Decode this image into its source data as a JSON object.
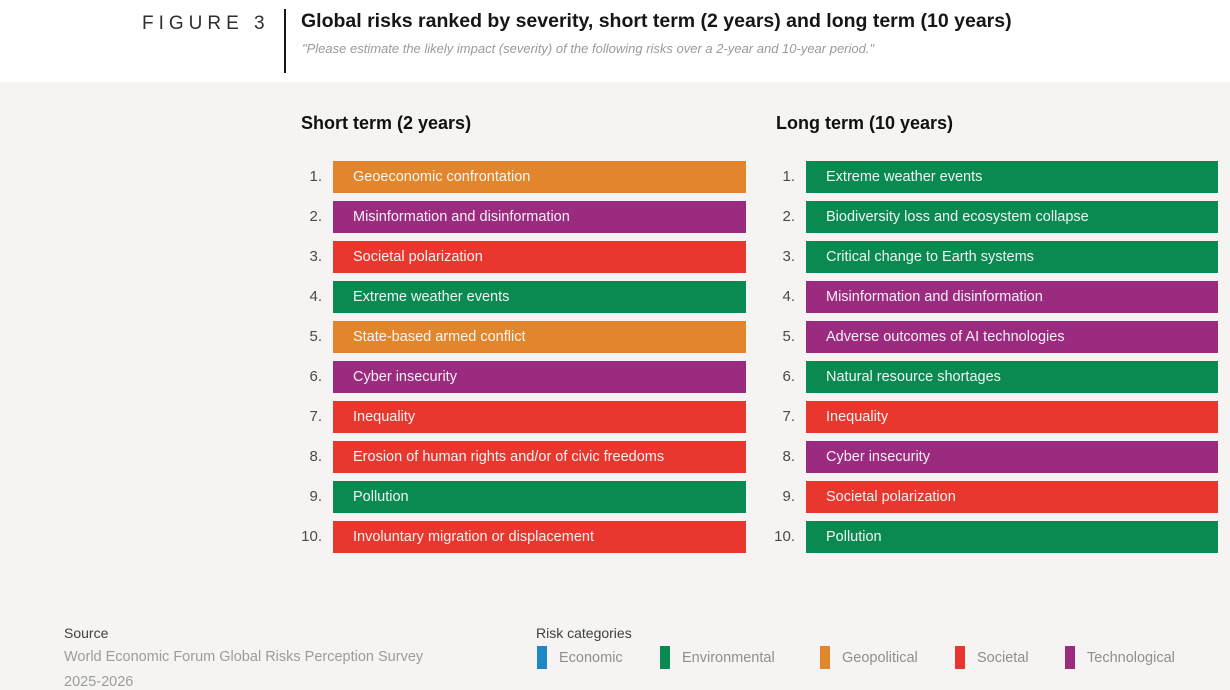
{
  "figure": {
    "label": "FIGURE 3",
    "title": "Global risks ranked by severity, short term (2 years) and long term (10 years)",
    "subtitle": "\"Please estimate the likely impact (severity) of the following risks over a 2-year and 10-year period.\""
  },
  "chart_data": {
    "type": "table",
    "description": "Two ranked lists of global risks by severity, color-coded by risk category",
    "columns": [
      {
        "title": "Short term (2 years)",
        "items": [
          {
            "rank": "1.",
            "label": "Geoeconomic confrontation",
            "category": "geopolitical"
          },
          {
            "rank": "2.",
            "label": "Misinformation and disinformation",
            "category": "technological"
          },
          {
            "rank": "3.",
            "label": "Societal polarization",
            "category": "societal"
          },
          {
            "rank": "4.",
            "label": "Extreme weather events",
            "category": "environmental"
          },
          {
            "rank": "5.",
            "label": "State-based armed conflict",
            "category": "geopolitical"
          },
          {
            "rank": "6.",
            "label": "Cyber insecurity",
            "category": "technological"
          },
          {
            "rank": "7.",
            "label": "Inequality",
            "category": "societal"
          },
          {
            "rank": "8.",
            "label": "Erosion of human rights and/or of civic freedoms",
            "category": "societal"
          },
          {
            "rank": "9.",
            "label": "Pollution",
            "category": "environmental"
          },
          {
            "rank": "10.",
            "label": "Involuntary migration or displacement",
            "category": "societal"
          }
        ]
      },
      {
        "title": "Long term (10 years)",
        "items": [
          {
            "rank": "1.",
            "label": "Extreme weather events",
            "category": "environmental"
          },
          {
            "rank": "2.",
            "label": "Biodiversity loss and ecosystem collapse",
            "category": "environmental"
          },
          {
            "rank": "3.",
            "label": "Critical change to Earth systems",
            "category": "environmental"
          },
          {
            "rank": "4.",
            "label": "Misinformation and disinformation",
            "category": "technological"
          },
          {
            "rank": "5.",
            "label": "Adverse outcomes of AI technologies",
            "category": "technological"
          },
          {
            "rank": "6.",
            "label": "Natural resource shortages",
            "category": "environmental"
          },
          {
            "rank": "7.",
            "label": "Inequality",
            "category": "societal"
          },
          {
            "rank": "8.",
            "label": "Cyber insecurity",
            "category": "technological"
          },
          {
            "rank": "9.",
            "label": "Societal polarization",
            "category": "societal"
          },
          {
            "rank": "10.",
            "label": "Pollution",
            "category": "environmental"
          }
        ]
      }
    ]
  },
  "footer": {
    "source_label": "Source",
    "source_line1": "World Economic Forum Global Risks Perception Survey",
    "source_line2": "2025-2026",
    "legend_title": "Risk categories",
    "legend": [
      {
        "label": "Economic",
        "category": "economic"
      },
      {
        "label": "Environmental",
        "category": "environmental"
      },
      {
        "label": "Geopolitical",
        "category": "geopolitical"
      },
      {
        "label": "Societal",
        "category": "societal"
      },
      {
        "label": "Technological",
        "category": "technological"
      }
    ]
  },
  "colors": {
    "economic": "#1E87C8",
    "environmental": "#0A8A50",
    "geopolitical": "#E1862C",
    "societal": "#E7372E",
    "technological": "#9B2B7E",
    "background": "#F5F4F2",
    "header_background": "#FFFFFF"
  }
}
